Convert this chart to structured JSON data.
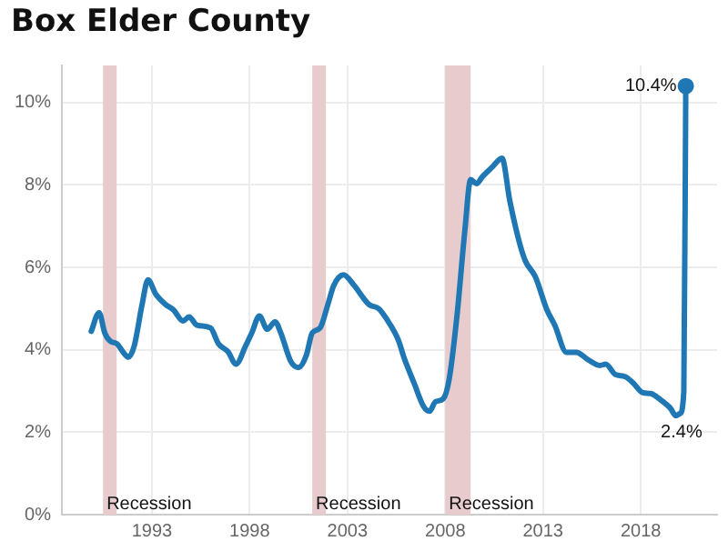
{
  "chart_data": {
    "type": "line",
    "title": "Box Elder County",
    "x": [
      1989.9,
      1990.3,
      1990.6,
      1990.9,
      1991.2,
      1991.6,
      1991.8,
      1992.1,
      1992.5,
      1992.8,
      1993.2,
      1993.7,
      1994.1,
      1994.6,
      1994.9,
      1995.3,
      1996.0,
      1996.4,
      1996.9,
      1997.3,
      1997.8,
      1998.1,
      1998.5,
      1998.9,
      1999.3,
      1999.6,
      2000.1,
      2000.5,
      2000.9,
      2001.2,
      2001.6,
      2002.0,
      2002.3,
      2002.8,
      2003.3,
      2004.1,
      2004.6,
      2005.0,
      2005.6,
      2005.9,
      2006.4,
      2006.9,
      2007.2,
      2007.5,
      2007.9,
      2008.2,
      2008.6,
      2009.0,
      2009.3,
      2009.6,
      2009.9,
      2010.4,
      2010.9,
      2011.3,
      2011.8,
      2012.1,
      2012.6,
      2013.2,
      2013.6,
      2014.2,
      2014.7,
      2015.3,
      2015.9,
      2016.2,
      2016.7,
      2017.2,
      2017.6,
      2018.1,
      2018.5,
      2019.0,
      2019.5,
      2019.8,
      2020.0,
      2020.2,
      2020.3
    ],
    "series": [
      {
        "color": "#1f77b4",
        "values": [
          4.45,
          4.9,
          4.4,
          4.2,
          4.15,
          3.9,
          3.82,
          4.1,
          5.1,
          5.7,
          5.35,
          5.1,
          4.97,
          4.7,
          4.8,
          4.6,
          4.53,
          4.15,
          3.95,
          3.65,
          4.1,
          4.4,
          4.82,
          4.5,
          4.68,
          4.4,
          3.72,
          3.57,
          3.87,
          4.41,
          4.53,
          5.1,
          5.56,
          5.82,
          5.59,
          5.1,
          5.0,
          4.75,
          4.24,
          3.8,
          3.2,
          2.62,
          2.51,
          2.74,
          2.81,
          3.28,
          4.82,
          6.88,
          8.13,
          8.03,
          8.2,
          8.43,
          8.65,
          7.62,
          6.59,
          6.15,
          5.78,
          4.97,
          4.6,
          3.94,
          3.94,
          3.76,
          3.62,
          3.65,
          3.4,
          3.35,
          3.2,
          2.96,
          2.94,
          2.79,
          2.59,
          2.4,
          2.45,
          2.99,
          10.4
        ]
      }
    ],
    "xlim": [
      1988.4,
      2021.9
    ],
    "xticks": [
      1993,
      1998,
      2003,
      2008,
      2013,
      2018
    ],
    "ylim": [
      0,
      10.9
    ],
    "yticks": [
      {
        "value": 0,
        "label": "0%"
      },
      {
        "value": 2,
        "label": "2%"
      },
      {
        "value": 4,
        "label": "4%"
      },
      {
        "value": 6,
        "label": "6%"
      },
      {
        "value": 8,
        "label": "8%"
      },
      {
        "value": 10,
        "label": "10%"
      }
    ],
    "grid": true,
    "bands": [
      {
        "axis": "x",
        "from": 1990.5,
        "to": 1991.2,
        "label": "Recession",
        "color": "#e8cccd"
      },
      {
        "axis": "x",
        "from": 2001.2,
        "to": 2001.9,
        "label": "Recession",
        "color": "#e8cccd"
      },
      {
        "axis": "x",
        "from": 2008.0,
        "to": 2009.3,
        "label": "Recession",
        "color": "#e8cccd"
      }
    ],
    "annotations": [
      {
        "text": "10.4%",
        "x": 2020.3,
        "y": 10.4
      },
      {
        "text": "2.4%",
        "x": 2019.8,
        "y": 2.4
      }
    ]
  }
}
